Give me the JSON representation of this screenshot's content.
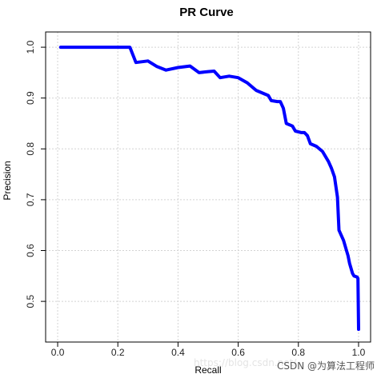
{
  "chart_data": {
    "type": "line",
    "title": "PR Curve",
    "xlabel": "Recall",
    "ylabel": "Precision",
    "xlim": [
      -0.04,
      1.04
    ],
    "ylim": [
      0.42,
      1.03
    ],
    "xticks": [
      0.0,
      0.2,
      0.4,
      0.6,
      0.8,
      1.0
    ],
    "xtick_labels": [
      "0.0",
      "0.2",
      "0.4",
      "0.6",
      "0.8",
      "1.0"
    ],
    "yticks": [
      0.5,
      0.6,
      0.7,
      0.8,
      0.9,
      1.0
    ],
    "ytick_labels": [
      "0.5",
      "0.6",
      "0.7",
      "0.8",
      "0.9",
      "1.0"
    ],
    "grid": true,
    "line_color": "#0000ff",
    "grid_color": "#d3d3d3",
    "series": [
      {
        "x": [
          0.01,
          0.05,
          0.1,
          0.15,
          0.2,
          0.24,
          0.26,
          0.3,
          0.33,
          0.36,
          0.4,
          0.44,
          0.47,
          0.5,
          0.52,
          0.54,
          0.57,
          0.6,
          0.63,
          0.66,
          0.7,
          0.71,
          0.73,
          0.74,
          0.75,
          0.76,
          0.78,
          0.79,
          0.81,
          0.82,
          0.83,
          0.84,
          0.86,
          0.88,
          0.9,
          0.91,
          0.92,
          0.93,
          0.935,
          0.95,
          0.96,
          0.965,
          0.97,
          0.98,
          0.985,
          0.995,
          0.998,
          1.0
        ],
        "y": [
          1.0,
          1.0,
          1.0,
          1.0,
          1.0,
          1.0,
          0.97,
          0.973,
          0.962,
          0.955,
          0.96,
          0.963,
          0.95,
          0.952,
          0.953,
          0.94,
          0.943,
          0.94,
          0.93,
          0.915,
          0.905,
          0.895,
          0.893,
          0.893,
          0.88,
          0.85,
          0.845,
          0.835,
          0.832,
          0.832,
          0.826,
          0.81,
          0.805,
          0.795,
          0.775,
          0.762,
          0.745,
          0.705,
          0.64,
          0.62,
          0.6,
          0.59,
          0.575,
          0.555,
          0.55,
          0.548,
          0.545,
          0.445
        ]
      }
    ]
  },
  "watermark_url": "https://blog.csdn.net/",
  "watermark_credit": "CSDN @为算法工程师"
}
